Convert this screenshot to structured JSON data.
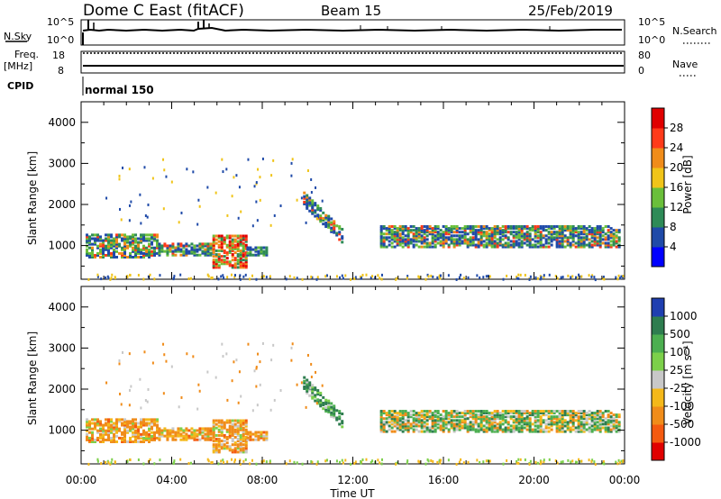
{
  "header": {
    "station": "Dome C East (fitACF)",
    "beam": "Beam 15",
    "date": "25/Feb/2019"
  },
  "status_panels": {
    "nsky_label": "N.Sky",
    "nsky_ticks": [
      "10^5",
      "10^0"
    ],
    "nsearch_label": "N.Search",
    "nsearch_ticks": [
      "10^5",
      "10^0"
    ],
    "freq_label": "Freq.",
    "freq_unit": "[MHz]",
    "freq_ticks": [
      "18",
      "8"
    ],
    "nave_label": "Nave",
    "nave_ticks": [
      "80",
      "0"
    ],
    "cpid_label": "CPID",
    "cpid_value": "normal 150"
  },
  "chart_data": [
    {
      "type": "heatmap",
      "parameter": "power",
      "ylabel": "Slant Range [km]",
      "yticks": [
        "1000",
        "2000",
        "3000",
        "4000"
      ],
      "ylim": [
        180,
        4500
      ],
      "xlim_hours": [
        0,
        24
      ],
      "colorbar_label": "Power [dB]",
      "colorbar_ticks": [
        "4",
        "8",
        "12",
        "16",
        "20",
        "24",
        "28"
      ],
      "colors": [
        "#0000ff",
        "#1f4aa8",
        "#2e8b57",
        "#6abf3a",
        "#f0c419",
        "#f08c1a",
        "#ff3a1a",
        "#e00000"
      ],
      "echo_regions": [
        {
          "start_h": 0.2,
          "end_h": 3.4,
          "range_km": [
            750,
            1300
          ],
          "level": "mid"
        },
        {
          "start_h": 3.4,
          "end_h": 5.8,
          "range_km": [
            800,
            1100
          ],
          "level": "mid"
        },
        {
          "start_h": 5.8,
          "end_h": 7.3,
          "range_km": [
            500,
            1300
          ],
          "level": "high"
        },
        {
          "start_h": 7.3,
          "end_h": 8.2,
          "range_km": [
            800,
            1000
          ],
          "level": "low"
        },
        {
          "start_h": 9.8,
          "end_h": 11.5,
          "range_km": [
            1200,
            2000
          ],
          "level": "mid"
        },
        {
          "start_h": 13.2,
          "end_h": 23.8,
          "range_km": [
            1000,
            1500
          ],
          "level": "mid"
        }
      ]
    },
    {
      "type": "heatmap",
      "parameter": "velocity",
      "ylabel": "Slant Range [km]",
      "yticks": [
        "1000",
        "2000",
        "3000",
        "4000"
      ],
      "ylim": [
        180,
        4500
      ],
      "xlim_hours": [
        0,
        24
      ],
      "xticks": [
        "00:00",
        "04:00",
        "08:00",
        "12:00",
        "16:00",
        "20:00",
        "00:00"
      ],
      "xlabel": "Time UT",
      "colorbar_label": "Velocity [m s⁻¹]",
      "colorbar_ticks": [
        "1000",
        "500",
        "100",
        "25",
        "-25",
        "-100",
        "-500",
        "-1000"
      ],
      "colors": [
        "#1f3fb0",
        "#2e7d4f",
        "#4caf50",
        "#7cd04a",
        "#c8c8c8",
        "#f4b81a",
        "#f08c1a",
        "#f45a10",
        "#e00000"
      ]
    }
  ]
}
